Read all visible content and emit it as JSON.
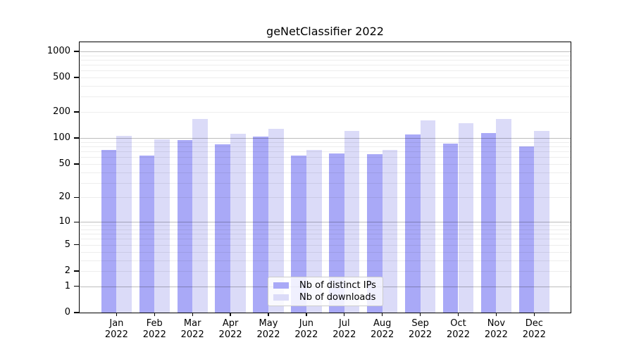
{
  "title": "geNetClassifier 2022",
  "chart_data": {
    "type": "bar",
    "title": "geNetClassifier 2022",
    "categories": [
      "Jan",
      "Feb",
      "Mar",
      "Apr",
      "May",
      "Jun",
      "Jul",
      "Aug",
      "Sep",
      "Oct",
      "Nov",
      "Dec"
    ],
    "x_tick_second_line": "2022",
    "series": [
      {
        "name": "Nb of distinct IPs",
        "color": "#a9a9f7",
        "values": [
          73,
          63,
          94,
          85,
          105,
          63,
          66,
          65,
          111,
          87,
          115,
          80
        ]
      },
      {
        "name": "Nb of downloads",
        "color": "#dbdbf8",
        "values": [
          107,
          97,
          165,
          113,
          129,
          73,
          121,
          73,
          160,
          148,
          168,
          120
        ]
      }
    ],
    "y_ticks": [
      0,
      1,
      2,
      5,
      10,
      20,
      50,
      100,
      200,
      500,
      1000
    ],
    "y_scale": "log10(value+1)",
    "ylim": [
      0,
      1273
    ],
    "xlabel": "",
    "ylabel": "",
    "grid": {
      "orientation": "horizontal",
      "major_lines": [
        1,
        10,
        100,
        1000
      ],
      "minor_multiples_per_decade": [
        2,
        3,
        4,
        5,
        6,
        7,
        8,
        9
      ]
    },
    "legend_position": "lower center"
  },
  "colors": {
    "background": "#ffffff",
    "axis": "#000000",
    "grid_major": "rgba(0,0,0,0.26)",
    "grid_minor": "rgba(0,0,0,0.07)",
    "legend_border": "#cccccc"
  }
}
